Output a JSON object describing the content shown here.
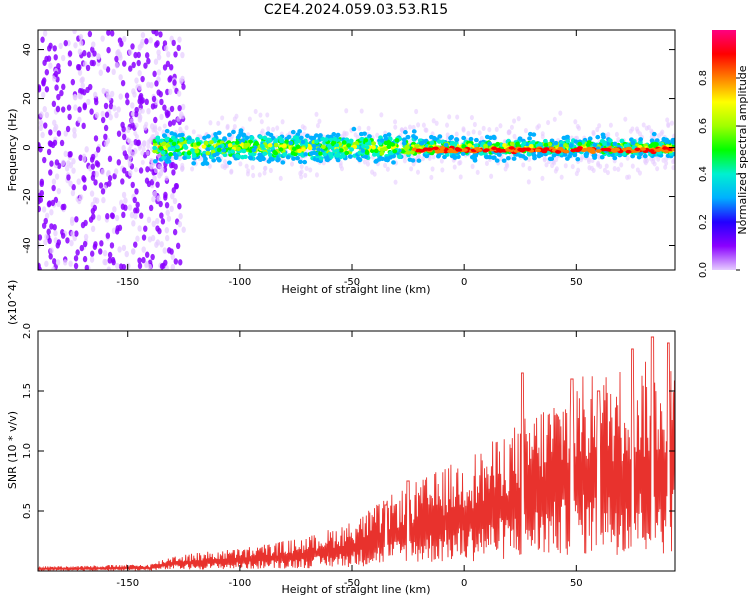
{
  "title": "C2E4.2024.059.03.53.R15",
  "chart_data": [
    {
      "type": "heatmap",
      "xlabel": "Height of straight line (km)",
      "ylabel": "Frequency (Hz)",
      "xlim": [
        -190,
        94
      ],
      "ylim": [
        -50,
        48
      ],
      "xticks": [
        -150,
        -100,
        -50,
        0,
        50
      ],
      "yticks": [
        -40,
        -20,
        0,
        20,
        40
      ],
      "colorbar": {
        "label": "Normalized spectral amplitude",
        "range": [
          0,
          1
        ],
        "ticks": [
          "0.0",
          "0.2",
          "0.4",
          "0.6",
          "0.8"
        ],
        "colors": [
          "#e6ccff",
          "#8a00ff",
          "#2200ff",
          "#00b0ff",
          "#00f0d0",
          "#00ff00",
          "#a0ff00",
          "#ffff00",
          "#ff8000",
          "#ff0000",
          "#ff0080"
        ]
      },
      "features": [
        {
          "description": "broadband noise",
          "x_range": [
            -190,
            -135
          ],
          "freq_range": [
            -50,
            48
          ],
          "amplitude": 0.1
        },
        {
          "description": "signal band",
          "x_range": [
            -150,
            94
          ],
          "center_freq": 0,
          "half_width_hz": 5,
          "amplitude_range": [
            0.3,
            1.0
          ]
        },
        {
          "description": "strong line",
          "x_range": [
            -23,
            94
          ],
          "center_freq": -1,
          "amplitude": 0.95
        }
      ]
    },
    {
      "type": "line",
      "xlabel": "Height of straight line (km)",
      "ylabel": "SNR (10 * v/v)",
      "y_multiplier": "(x10^4)",
      "xlim": [
        -190,
        94
      ],
      "ylim": [
        0,
        2.0
      ],
      "xticks": [
        -150,
        -100,
        -50,
        0,
        50
      ],
      "yticks": [
        "0.5",
        "1.0",
        "1.5",
        "2.0"
      ],
      "color": "#e8322d",
      "trend": [
        {
          "x": -190,
          "y": 0.02
        },
        {
          "x": -140,
          "y": 0.03
        },
        {
          "x": -130,
          "y": 0.07
        },
        {
          "x": -100,
          "y": 0.1
        },
        {
          "x": -70,
          "y": 0.15
        },
        {
          "x": -50,
          "y": 0.22
        },
        {
          "x": -30,
          "y": 0.35
        },
        {
          "x": -10,
          "y": 0.45
        },
        {
          "x": 10,
          "y": 0.55
        },
        {
          "x": 30,
          "y": 0.7
        },
        {
          "x": 50,
          "y": 0.85
        },
        {
          "x": 70,
          "y": 0.9
        },
        {
          "x": 94,
          "y": 0.95
        }
      ],
      "peaks": [
        {
          "x": -35,
          "y": 0.55
        },
        {
          "x": -25,
          "y": 0.75
        },
        {
          "x": 26,
          "y": 1.65
        },
        {
          "x": 48,
          "y": 1.6
        },
        {
          "x": 60,
          "y": 1.5
        },
        {
          "x": 75,
          "y": 1.85
        },
        {
          "x": 84,
          "y": 1.95
        },
        {
          "x": 91,
          "y": 1.9
        }
      ]
    }
  ]
}
